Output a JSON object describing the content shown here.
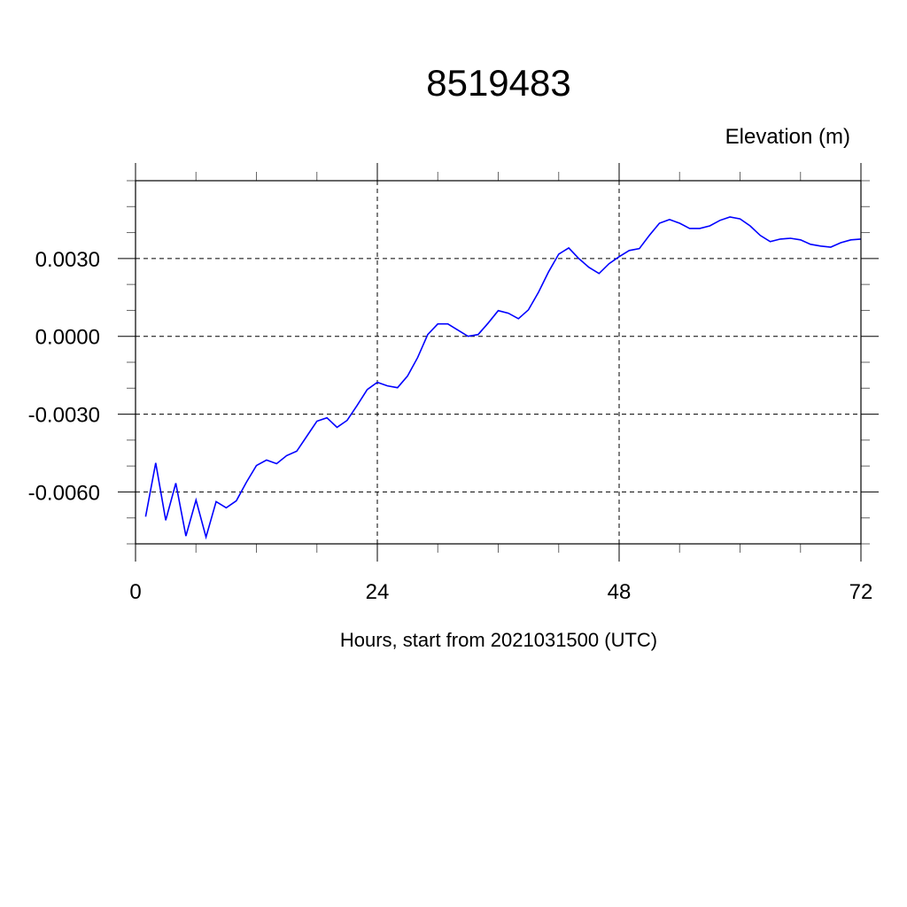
{
  "chart_data": {
    "type": "line",
    "title": "8519483",
    "ylabel": "Elevation (m)",
    "xlabel": "Hours, start from 2021031500 (UTC)",
    "xlim": [
      0,
      72
    ],
    "ylim": [
      -0.008,
      0.006
    ],
    "x_ticks": [
      0,
      24,
      48,
      72
    ],
    "x_tick_labels": [
      "0",
      "24",
      "48",
      "72"
    ],
    "x_minor_step": 6,
    "y_ticks": [
      -0.006,
      -0.003,
      0.0,
      0.003
    ],
    "y_tick_labels": [
      "-0.0060",
      "-0.0030",
      "0.0000",
      "0.0030"
    ],
    "y_minor_step": 0.001,
    "grid": "dashed at major ticks",
    "line_color": "#0000ff",
    "series": [
      {
        "x": [
          1,
          2,
          3,
          4,
          5,
          6,
          7,
          8,
          9,
          10,
          11,
          12,
          13,
          14,
          15,
          16,
          17,
          18,
          19,
          20,
          21,
          22,
          23,
          24,
          25,
          26,
          27,
          28,
          29,
          30,
          31,
          32,
          33,
          34,
          35,
          36,
          37,
          38,
          39,
          40,
          41,
          42,
          43,
          44,
          45,
          46,
          47,
          48,
          49,
          50,
          51,
          52,
          53,
          54,
          55,
          56,
          57,
          58,
          59,
          60,
          61,
          62,
          63,
          64,
          65,
          66,
          67,
          68,
          69,
          70,
          71,
          72
        ],
        "values": [
          -0.00695,
          -0.00488,
          -0.00709,
          -0.00566,
          -0.0077,
          -0.00631,
          -0.00774,
          -0.00637,
          -0.00661,
          -0.00634,
          -0.00563,
          -0.00498,
          -0.00477,
          -0.00491,
          -0.0046,
          -0.00443,
          -0.00385,
          -0.00327,
          -0.00314,
          -0.00351,
          -0.00324,
          -0.00266,
          -0.00205,
          -0.00177,
          -0.00191,
          -0.00198,
          -0.00153,
          -0.00082,
          7e-05,
          0.00048,
          0.00048,
          0.00024,
          0.0,
          7e-05,
          0.00051,
          0.00099,
          0.00089,
          0.00068,
          0.00102,
          0.0017,
          0.00249,
          0.00317,
          0.00341,
          0.003,
          0.00266,
          0.00242,
          0.0028,
          0.00307,
          0.00331,
          0.00338,
          0.00389,
          0.00436,
          0.0045,
          0.00436,
          0.00416,
          0.00416,
          0.00426,
          0.00447,
          0.0046,
          0.00453,
          0.00426,
          0.00389,
          0.00365,
          0.00375,
          0.00378,
          0.00372,
          0.00355,
          0.00348,
          0.00344,
          0.00361,
          0.00372,
          0.00375
        ]
      }
    ]
  }
}
